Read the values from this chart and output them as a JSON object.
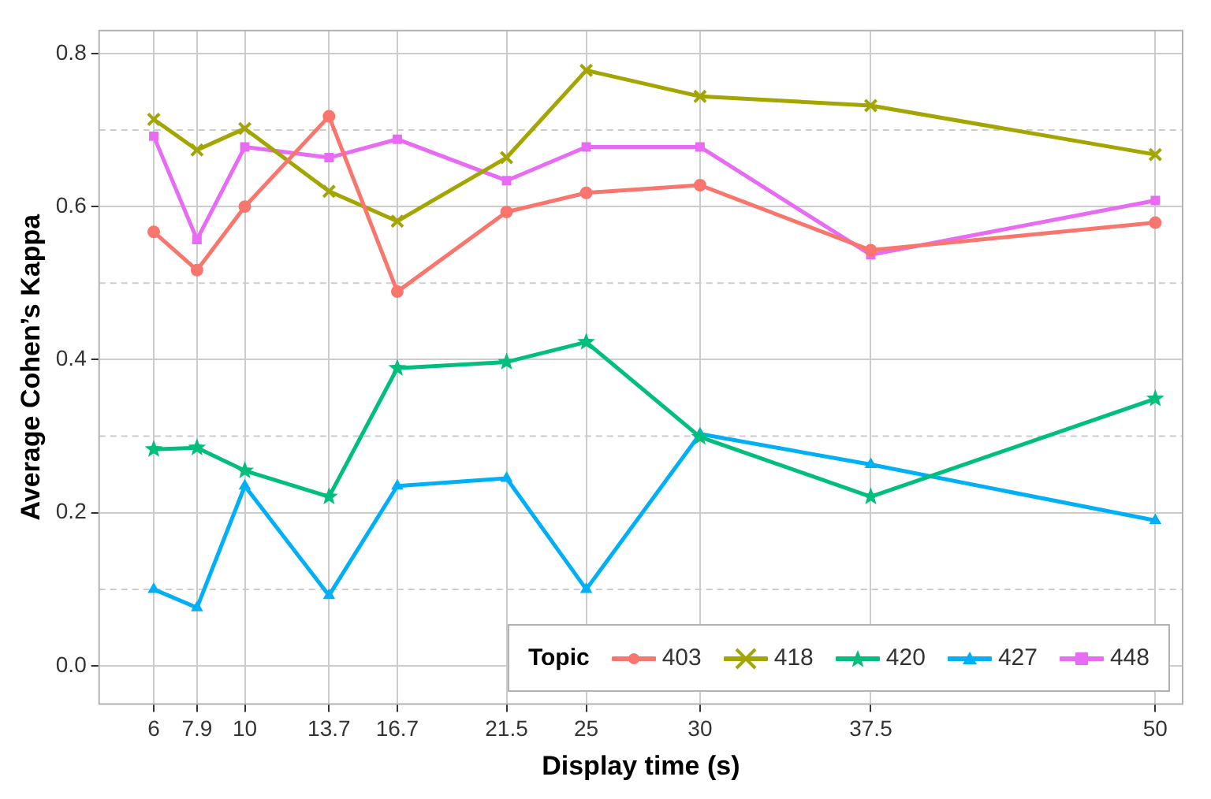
{
  "chart_data": {
    "type": "line",
    "xlabel": "Display time (s)",
    "ylabel": "Average Cohen’s Kappa",
    "legend_title": "Topic",
    "legend": "bottom right",
    "grid": true,
    "x": [
      6,
      7.9,
      10,
      13.7,
      16.7,
      21.5,
      25,
      30,
      37.5,
      50
    ],
    "xlim": [
      3.6,
      51.2
    ],
    "xticks": [
      6,
      7.9,
      10,
      13.7,
      16.7,
      21.5,
      25,
      30,
      37.5,
      50
    ],
    "ylim": [
      -0.05,
      0.83
    ],
    "yticks": [
      {
        "value": 0,
        "label": "0.0"
      },
      {
        "value": 0.1,
        "label": null
      },
      {
        "value": 0.2,
        "label": "0.2"
      },
      {
        "value": 0.3,
        "label": null
      },
      {
        "value": 0.4,
        "label": "0.4"
      },
      {
        "value": 0.5,
        "label": null
      },
      {
        "value": 0.6,
        "label": "0.6"
      },
      {
        "value": 0.7,
        "label": null
      },
      {
        "value": 0.8,
        "label": "0.8"
      }
    ],
    "series": [
      {
        "name": "403",
        "color": "#f8766d",
        "marker": "circle",
        "values": [
          0.567,
          0.517,
          0.6,
          0.718,
          0.489,
          0.593,
          0.618,
          0.628,
          0.543,
          0.579
        ]
      },
      {
        "name": "418",
        "color": "#a3a500",
        "marker": "cross",
        "values": [
          0.714,
          0.674,
          0.702,
          0.62,
          0.581,
          0.664,
          0.778,
          0.744,
          0.732,
          0.668
        ]
      },
      {
        "name": "420",
        "color": "#00bf7d",
        "marker": "star",
        "values": [
          0.283,
          0.285,
          0.255,
          0.221,
          0.389,
          0.397,
          0.423,
          0.299,
          0.221,
          0.349
        ]
      },
      {
        "name": "427",
        "color": "#00b0f6",
        "marker": "triangle",
        "values": [
          0.1,
          0.076,
          0.235,
          0.092,
          0.235,
          0.245,
          0.1,
          0.303,
          0.263,
          0.19
        ]
      },
      {
        "name": "448",
        "color": "#e76bf3",
        "marker": "square",
        "values": [
          0.692,
          0.557,
          0.678,
          0.664,
          0.688,
          0.634,
          0.678,
          0.678,
          0.537,
          0.608
        ]
      }
    ]
  }
}
